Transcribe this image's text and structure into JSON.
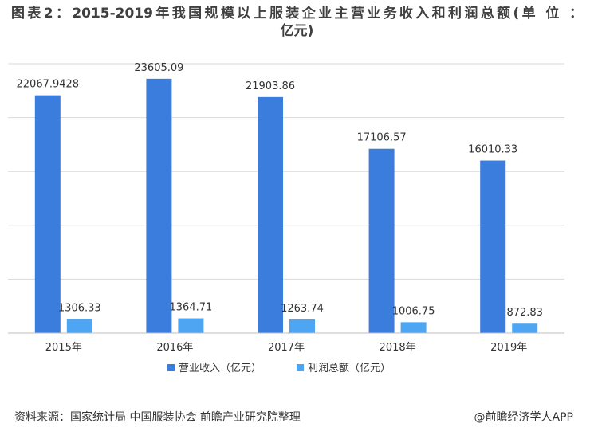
{
  "title_line1": "图表2：2015-2019年我国规模以上服装企业主营业务收入和利润总额(单 位 ：",
  "title_line2": "亿元)",
  "source": "资料来源：国家统计局 中国服装协会 前瞻产业研究院整理",
  "credit": "@前瞻经济学人APP",
  "colors": {
    "revenue": "#3b7ddd",
    "profit": "#4ea6f2",
    "grid": "#d9d9d9",
    "axis": "#bfbfbf"
  },
  "chart_data": {
    "type": "bar",
    "categories": [
      "2015年",
      "2016年",
      "2017年",
      "2018年",
      "2019年"
    ],
    "series": [
      {
        "name": "营业收入（亿元）",
        "values": [
          22067.9428,
          23605.09,
          21903.86,
          17106.57,
          16010.33
        ],
        "labels": [
          "22067.9428",
          "23605.09",
          "21903.86",
          "17106.57",
          "16010.33"
        ]
      },
      {
        "name": "利润总额（亿元）",
        "values": [
          1306.33,
          1364.71,
          1263.74,
          1006.75,
          872.83
        ],
        "labels": [
          "1306.33",
          "1364.71",
          "1263.74",
          "1006.75",
          "872.83"
        ]
      }
    ],
    "ylim": [
      0,
      25000
    ],
    "grid": true,
    "legend_position": "bottom"
  }
}
